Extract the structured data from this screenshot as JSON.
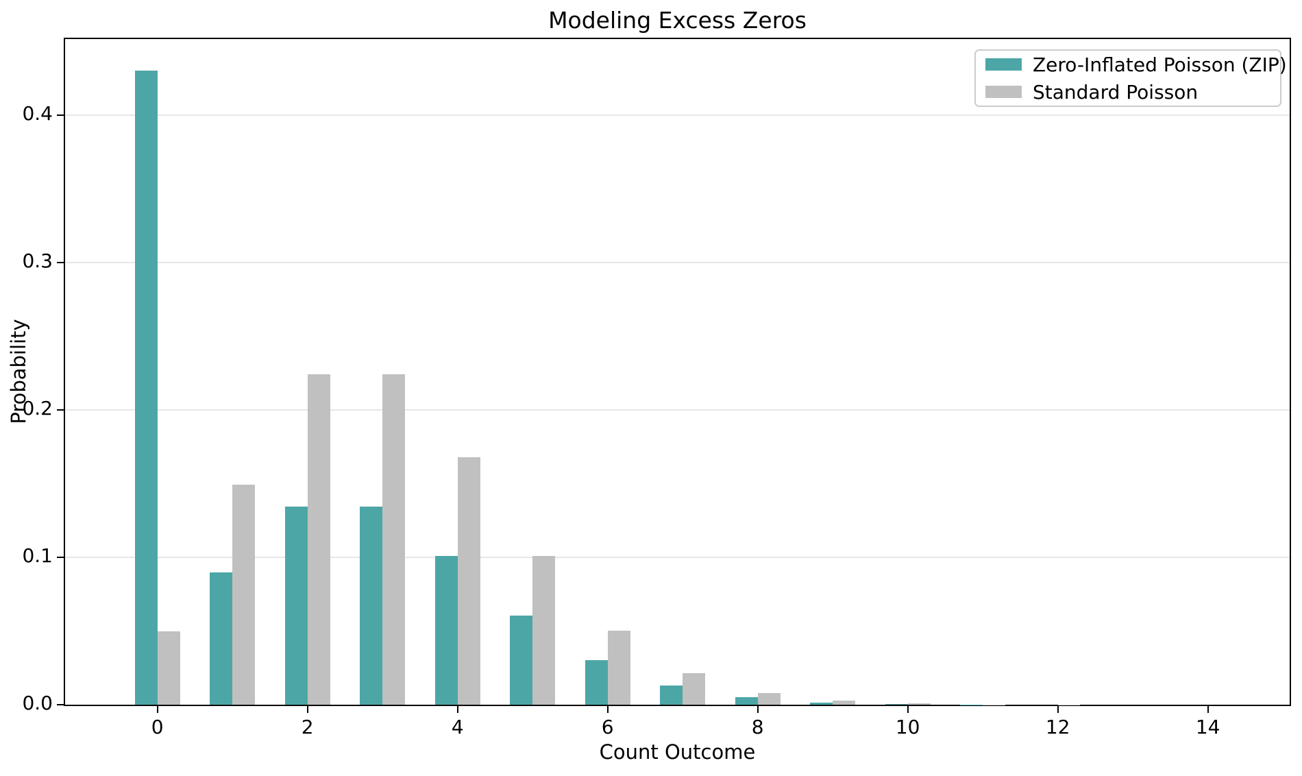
{
  "chart_data": {
    "type": "bar",
    "title": "Modeling Excess Zeros",
    "xlabel": "Count Outcome",
    "ylabel": "Probability",
    "x": [
      0,
      1,
      2,
      3,
      4,
      5,
      6,
      7,
      8,
      9,
      10,
      11,
      12,
      13,
      14,
      15
    ],
    "series": [
      {
        "name": "Zero-Inflated Poisson (ZIP)",
        "color": "#4da6a6",
        "values": [
          0.4299,
          0.0896,
          0.1344,
          0.1344,
          0.1008,
          0.0605,
          0.0302,
          0.013,
          0.0049,
          0.0016,
          0.0005,
          0.0001,
          0.0,
          0,
          0,
          0
        ]
      },
      {
        "name": "Standard Poisson",
        "color": "#c0c0c0",
        "values": [
          0.0498,
          0.1494,
          0.224,
          0.224,
          0.168,
          0.1008,
          0.0504,
          0.0216,
          0.0081,
          0.0027,
          0.0008,
          0.0002,
          0.0001,
          0,
          0,
          0
        ]
      }
    ],
    "bar_width": 0.3,
    "xticks": [
      {
        "value": 0,
        "label": "0"
      },
      {
        "value": 2,
        "label": "2"
      },
      {
        "value": 4,
        "label": "4"
      },
      {
        "value": 6,
        "label": "6"
      },
      {
        "value": 8,
        "label": "8"
      },
      {
        "value": 10,
        "label": "10"
      },
      {
        "value": 12,
        "label": "12"
      },
      {
        "value": 14,
        "label": "14"
      }
    ],
    "yticks": [
      {
        "value": 0.0,
        "label": "0.0"
      },
      {
        "value": 0.1,
        "label": "0.1"
      },
      {
        "value": 0.2,
        "label": "0.2"
      },
      {
        "value": 0.3,
        "label": "0.3"
      },
      {
        "value": 0.4,
        "label": "0.4"
      }
    ],
    "xlim": [
      -1.23,
      15.09
    ],
    "ylim": [
      0,
      0.4514
    ],
    "grid": "horizontal-only",
    "grid_color": "#e6e6e6",
    "legend_position": "upper-right",
    "background_color": "#ffffff",
    "spine_color": "#000000"
  }
}
